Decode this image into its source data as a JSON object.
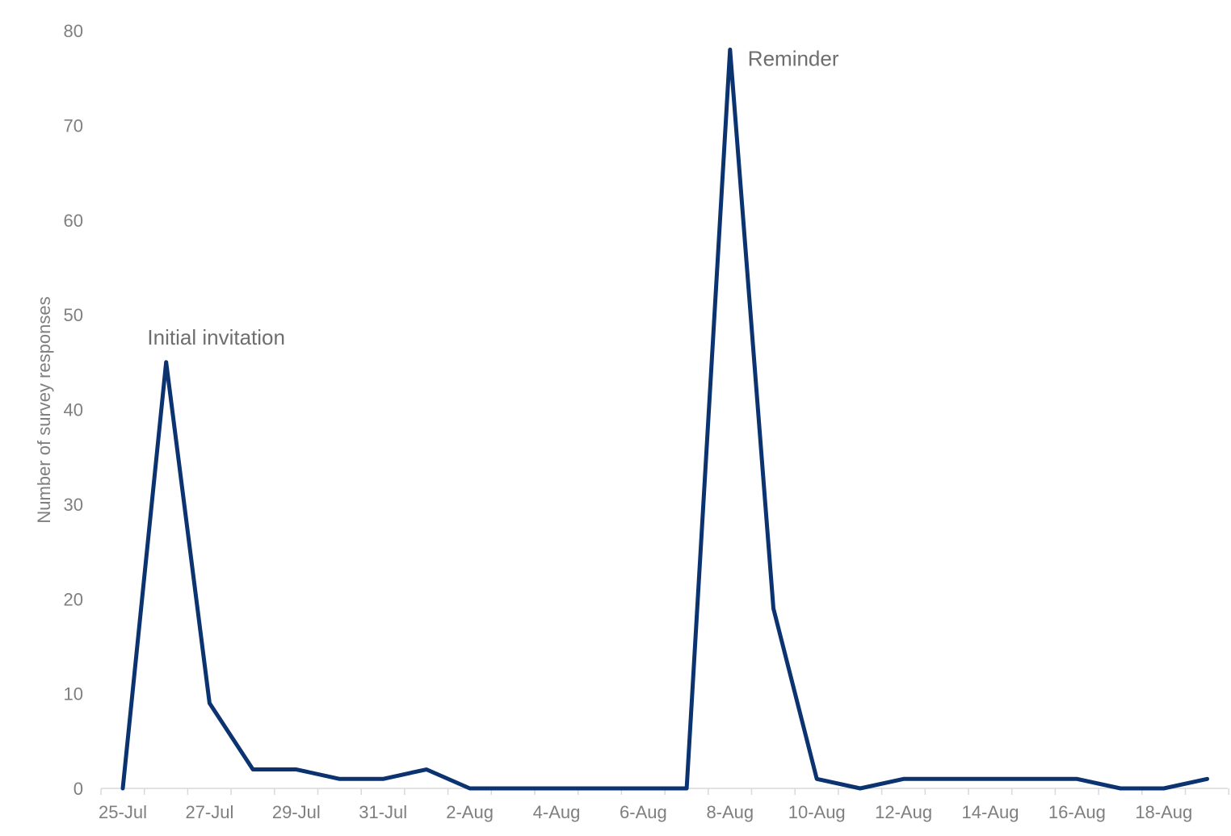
{
  "chart_data": {
    "type": "line",
    "title": "",
    "xlabel": "",
    "ylabel": "Number of survey responses",
    "ylim": [
      0,
      80
    ],
    "y_ticks": [
      0,
      10,
      20,
      30,
      40,
      50,
      60,
      70,
      80
    ],
    "x_tick_labels": [
      "25-Jul",
      "27-Jul",
      "29-Jul",
      "31-Jul",
      "2-Aug",
      "4-Aug",
      "6-Aug",
      "8-Aug",
      "10-Aug",
      "12-Aug",
      "14-Aug",
      "16-Aug",
      "18-Aug"
    ],
    "x": [
      "25-Jul",
      "26-Jul",
      "27-Jul",
      "28-Jul",
      "29-Jul",
      "30-Jul",
      "31-Jul",
      "1-Aug",
      "2-Aug",
      "3-Aug",
      "4-Aug",
      "5-Aug",
      "6-Aug",
      "7-Aug",
      "8-Aug",
      "9-Aug",
      "10-Aug",
      "11-Aug",
      "12-Aug",
      "13-Aug",
      "14-Aug",
      "15-Aug",
      "16-Aug",
      "17-Aug",
      "18-Aug",
      "19-Aug"
    ],
    "series": [
      {
        "values": [
          0,
          45,
          9,
          2,
          2,
          1,
          1,
          2,
          0,
          0,
          0,
          0,
          0,
          0,
          78,
          19,
          1,
          0,
          1,
          1,
          1,
          1,
          1,
          0,
          0,
          1
        ],
        "color": "#0b3370"
      }
    ],
    "grid": false,
    "legend": "none",
    "annotations": [
      {
        "text": "Initial invitation",
        "x": "26-Jul",
        "y": 45
      },
      {
        "text": "Reminder",
        "x": "8-Aug",
        "y": 78
      }
    ]
  }
}
